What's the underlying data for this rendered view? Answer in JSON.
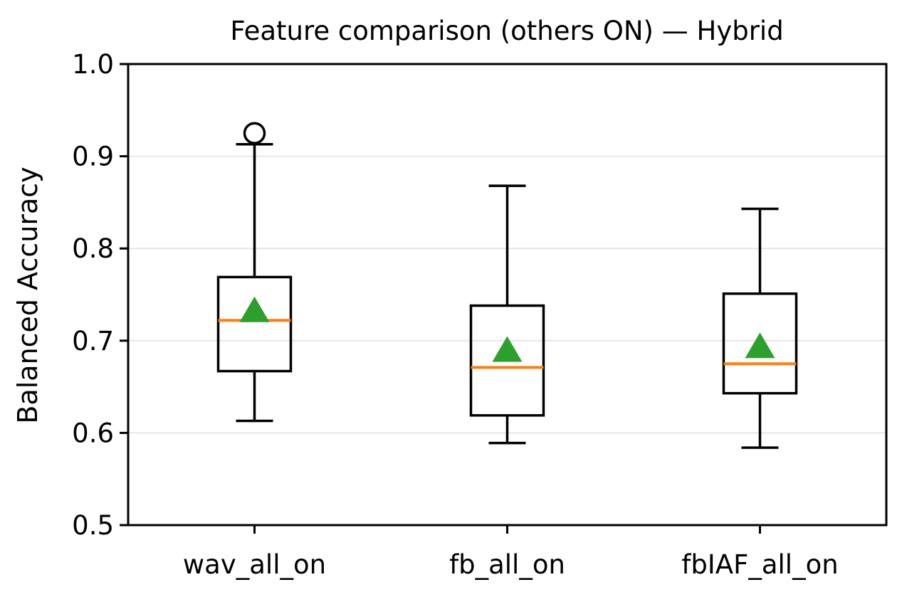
{
  "chart_data": {
    "type": "box",
    "title": "Feature comparison (others ON) — Hybrid",
    "xlabel": "",
    "ylabel": "Balanced Accuracy",
    "ylim": [
      0.5,
      1.0
    ],
    "yticks": [
      "0.5",
      "0.6",
      "0.7",
      "0.8",
      "0.9",
      "1.0"
    ],
    "grid": "horizontal",
    "categories": [
      "wav_all_on",
      "fb_all_on",
      "fbIAF_all_on"
    ],
    "boxes": [
      {
        "category": "wav_all_on",
        "whisker_low": 0.613,
        "q1": 0.667,
        "median": 0.722,
        "q3": 0.769,
        "whisker_high": 0.913,
        "mean": 0.734,
        "outliers": [
          0.925
        ]
      },
      {
        "category": "fb_all_on",
        "whisker_low": 0.589,
        "q1": 0.619,
        "median": 0.671,
        "q3": 0.738,
        "whisker_high": 0.868,
        "mean": 0.691,
        "outliers": []
      },
      {
        "category": "fbIAF_all_on",
        "whisker_low": 0.584,
        "q1": 0.643,
        "median": 0.675,
        "q3": 0.751,
        "whisker_high": 0.843,
        "mean": 0.695,
        "outliers": []
      }
    ],
    "colors": {
      "median": "#ff7f0e",
      "mean": "#2ca02c",
      "box": "#000000",
      "grid": "#e6e6e6"
    }
  }
}
